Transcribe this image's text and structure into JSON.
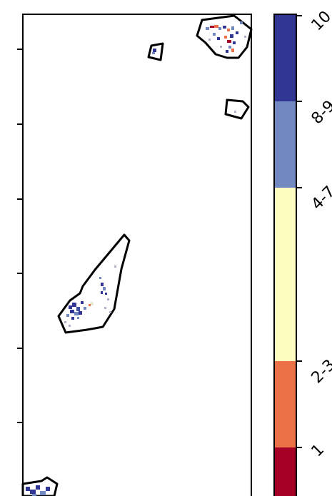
{
  "colorbar": {
    "segments": [
      {
        "label": "1",
        "color": "#a50026"
      },
      {
        "label": "2-3",
        "color": "#ea7246"
      },
      {
        "label": "4-7",
        "color": "#fefec1"
      },
      {
        "label": "8-9",
        "color": "#7288c0"
      },
      {
        "label": "10",
        "color": "#313695"
      }
    ]
  },
  "map": {
    "frame_color": "#000000",
    "background": "#ffffff",
    "boundary_color": "#000000"
  }
}
